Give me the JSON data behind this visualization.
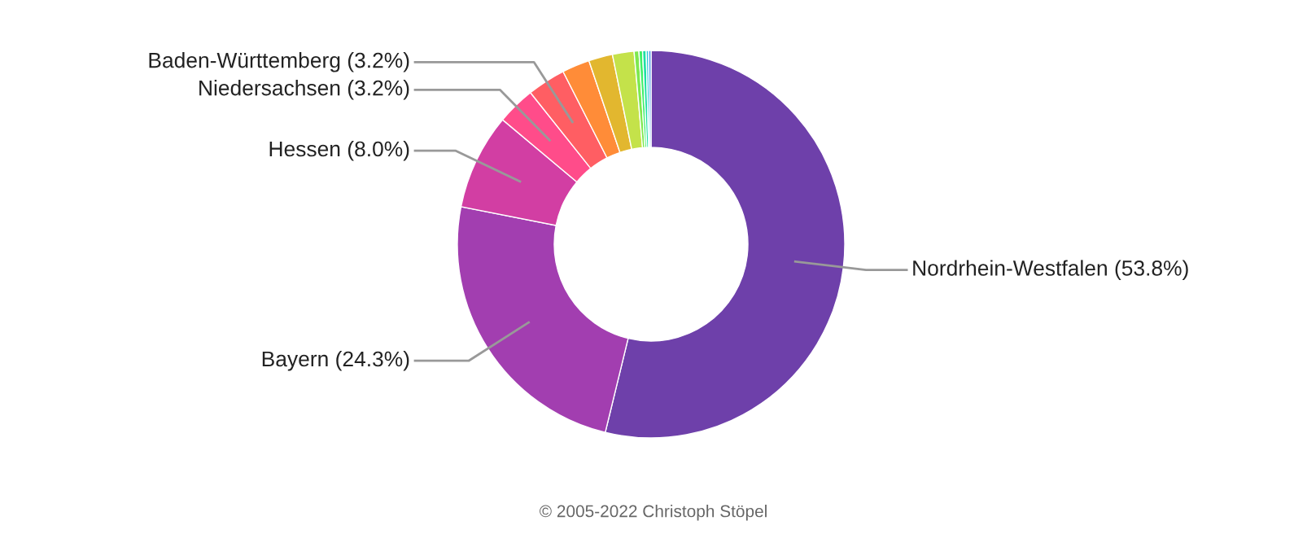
{
  "chart_data": {
    "type": "donut",
    "categories": [
      "Nordrhein-Westfalen (53.8%)",
      "Bayern (24.3%)",
      "Hessen (8.0%)",
      "Niedersachsen (3.2%)",
      "Baden-Württemberg (3.2%)",
      null,
      null,
      null,
      null,
      null,
      null,
      null,
      null
    ],
    "values": [
      53.8,
      24.3,
      8.0,
      3.2,
      3.2,
      2.3,
      2.0,
      1.8,
      0.4,
      0.3,
      0.3,
      0.2,
      0.2
    ],
    "colors": [
      "#6e40aa",
      "#a23eb0",
      "#d23ea3",
      "#ff4c8a",
      "#ff5e63",
      "#ff8c38",
      "#e2b72f",
      "#c4e24a",
      "#7ee84f",
      "#3ef067",
      "#1ddfa3",
      "#23c7d9",
      "#4e94e6"
    ],
    "annotations": [
      "© 2005-2022 Christoph Stöpel"
    ]
  }
}
